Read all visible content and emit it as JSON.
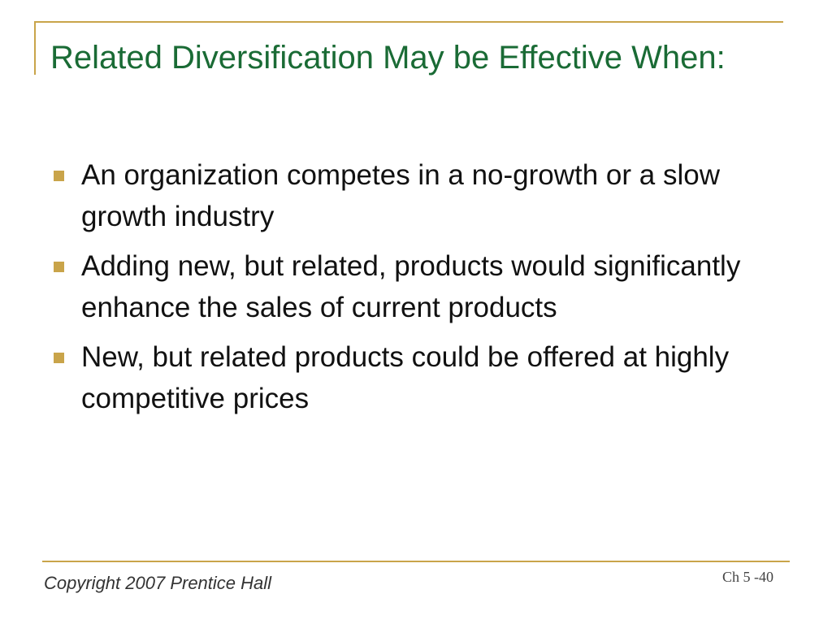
{
  "slide": {
    "title": "Related Diversification May be Effective When:",
    "bullets": [
      "An organization competes in a no-growth or a slow growth industry",
      "Adding new, but related, products would significantly enhance the sales of current products",
      "New, but related products could be offered at highly competitive prices"
    ],
    "footer": {
      "copyright": "Copyright 2007 Prentice Hall",
      "slide_number": "Ch 5 -40"
    }
  },
  "colors": {
    "title": "#1a6b35",
    "accent": "#c9a44a",
    "text": "#111111"
  }
}
